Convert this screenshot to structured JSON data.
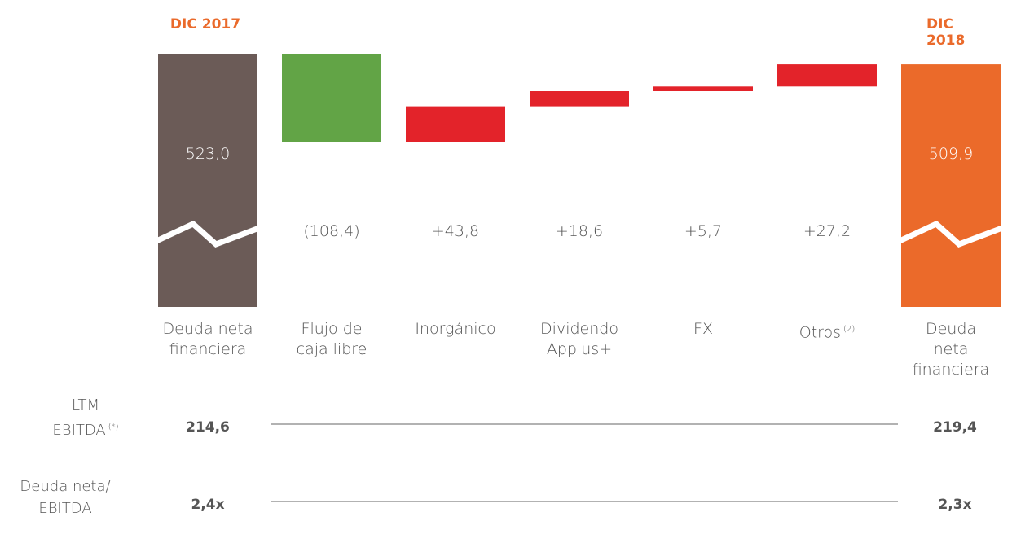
{
  "chart_data": {
    "type": "waterfall",
    "period_labels": [
      "DIC 2017",
      "DIC 2018"
    ],
    "categories": [
      "Deuda neta\nfinanciera",
      "Flujo de\ncaja libre",
      "Inorgánico",
      "Dividendo\nApplus+",
      "FX",
      "Otros",
      "Deuda neta\nfinanciera"
    ],
    "category_superscripts": [
      null,
      null,
      null,
      null,
      null,
      "(2)",
      null
    ],
    "bar_kinds": [
      "total",
      "change",
      "change",
      "change",
      "change",
      "change",
      "total"
    ],
    "values": [
      523.0,
      -108.4,
      43.8,
      18.6,
      5.7,
      27.2,
      509.9
    ],
    "value_labels": [
      "523,0",
      "(108,4)",
      "+43,8",
      "+18,6",
      "+5,7",
      "+27,2",
      "509,9"
    ],
    "colors": [
      "#6b5b57",
      "#62a446",
      "#e3232a",
      "#e3232a",
      "#e3232a",
      "#e3232a",
      "#eb6a2a"
    ],
    "rows": [
      {
        "label": "LTM\nEBITDA",
        "superscript": "(*)",
        "values": [
          214.6,
          219.4
        ],
        "value_labels": [
          "214,6",
          "219,4"
        ]
      },
      {
        "label": "Deuda neta/\nEBITDA",
        "values": [
          2.4,
          2.3
        ],
        "value_labels": [
          "2,4x",
          "2,3x"
        ]
      }
    ]
  }
}
